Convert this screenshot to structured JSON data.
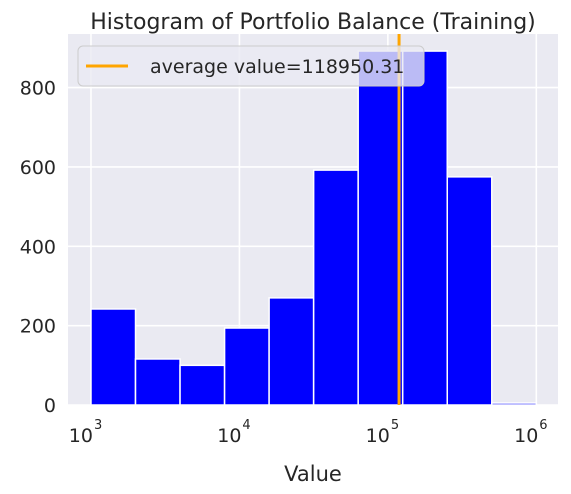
{
  "chart_data": {
    "type": "bar",
    "title": "Histogram of Portfolio Balance (Training)",
    "xlabel": "Value",
    "ylabel": "",
    "x_scale": "log",
    "xlim": [
      700,
      1400000
    ],
    "ylim": [
      0,
      935
    ],
    "x_tick_base": "10",
    "x_ticks": [
      {
        "value": 1000,
        "exp": "3"
      },
      {
        "value": 10000,
        "exp": "4"
      },
      {
        "value": 100000,
        "exp": "5"
      },
      {
        "value": 1000000,
        "exp": "6"
      }
    ],
    "y_ticks": [
      0,
      200,
      400,
      600,
      800
    ],
    "grid": true,
    "bins": [
      {
        "x0": 1000,
        "x1": 1995,
        "count": 242
      },
      {
        "x0": 1995,
        "x1": 3981,
        "count": 116
      },
      {
        "x0": 3981,
        "x1": 7943,
        "count": 100
      },
      {
        "x0": 7943,
        "x1": 15849,
        "count": 194
      },
      {
        "x0": 15849,
        "x1": 31623,
        "count": 270
      },
      {
        "x0": 31623,
        "x1": 63096,
        "count": 592
      },
      {
        "x0": 63096,
        "x1": 125893,
        "count": 892
      },
      {
        "x0": 125893,
        "x1": 251189,
        "count": 892
      },
      {
        "x0": 251189,
        "x1": 501187,
        "count": 575
      },
      {
        "x0": 501187,
        "x1": 1000000,
        "count": 5
      }
    ],
    "average": 118950.31,
    "legend": {
      "label": "average value=118950.31",
      "placement": "upper-left"
    },
    "colors": {
      "bar": "#0000ff",
      "average_line": "#ffa500",
      "plot_background": "#eaeaf2",
      "grid": "#ffffff"
    }
  }
}
